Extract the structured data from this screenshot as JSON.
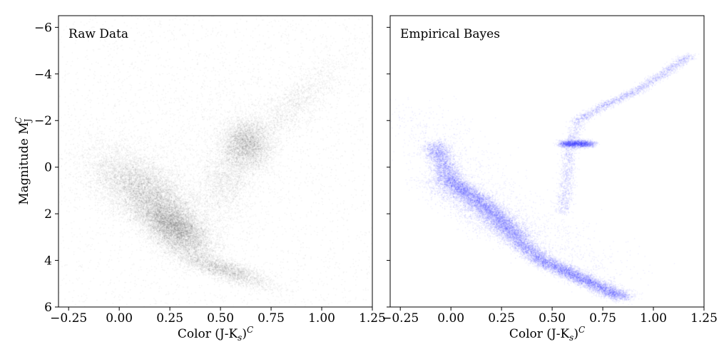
{
  "chart_data": [
    {
      "type": "scatter",
      "panel_label": "Raw Data",
      "xlabel": "Color (J-K",
      "xlabel_sub": "s",
      "xlabel_suffix": ")",
      "xlabel_sup": "C",
      "ylabel": "Magnitude M",
      "ylabel_sub": "J",
      "ylabel_sup": "C",
      "xlim": [
        -0.3,
        1.25
      ],
      "ylim": [
        6,
        -6.5
      ],
      "y_inverted": true,
      "x_ticks": [
        -0.25,
        0.0,
        0.25,
        0.5,
        0.75,
        1.0,
        1.25
      ],
      "x_tick_labels": [
        "−0.25",
        "0.00",
        "0.25",
        "0.50",
        "0.75",
        "1.00",
        "1.25"
      ],
      "y_ticks": [
        -6,
        -4,
        -2,
        0,
        2,
        4,
        6
      ],
      "y_tick_labels": [
        "−6",
        "−4",
        "−2",
        "0",
        "2",
        "4",
        "6"
      ],
      "point_color": "#000000",
      "components": [
        {
          "name": "main-sequence-upper",
          "x": 0.12,
          "y": 1.0,
          "sx": 0.13,
          "sy": 0.9,
          "rho": 0.55,
          "weight": 0.28
        },
        {
          "name": "main-sequence-core",
          "x": 0.28,
          "y": 2.6,
          "sx": 0.09,
          "sy": 0.65,
          "rho": 0.55,
          "weight": 0.3
        },
        {
          "name": "main-sequence-tail",
          "x": 0.52,
          "y": 4.4,
          "sx": 0.12,
          "sy": 0.4,
          "rho": 0.8,
          "weight": 0.1
        },
        {
          "name": "red-clump",
          "x": 0.63,
          "y": -1.0,
          "sx": 0.06,
          "sy": 0.55,
          "rho": 0.1,
          "weight": 0.14
        },
        {
          "name": "subgiant-branch",
          "x": 0.53,
          "y": 0.5,
          "sx": 0.07,
          "sy": 1.0,
          "rho": -0.3,
          "weight": 0.07
        },
        {
          "name": "giant-branch",
          "x": 0.85,
          "y": -2.6,
          "sx": 0.14,
          "sy": 1.1,
          "rho": -0.85,
          "weight": 0.06
        },
        {
          "name": "field-background",
          "x": 0.45,
          "y": -1.0,
          "sx": 0.35,
          "sy": 2.2,
          "rho": -0.3,
          "weight": 0.05
        }
      ]
    },
    {
      "type": "scatter",
      "panel_label": "Empirical Bayes",
      "xlabel": "Color (J-K",
      "xlabel_sub": "s",
      "xlabel_suffix": ")",
      "xlabel_sup": "C",
      "xlim": [
        -0.3,
        1.25
      ],
      "ylim": [
        6,
        -6.5
      ],
      "y_inverted": true,
      "x_ticks": [
        -0.25,
        0.0,
        0.25,
        0.5,
        0.75,
        1.0,
        1.25
      ],
      "x_tick_labels": [
        "−0.25",
        "0.00",
        "0.25",
        "0.50",
        "0.75",
        "1.00",
        "1.25"
      ],
      "y_ticks": [
        -6,
        -4,
        -2,
        0,
        2,
        4,
        6
      ],
      "point_color": "#0000ff",
      "ridges": [
        {
          "name": "main-sequence",
          "points": [
            [
              -0.08,
              -1.0
            ],
            [
              0.0,
              0.6
            ],
            [
              0.1,
              1.2
            ],
            [
              0.2,
              1.9
            ],
            [
              0.28,
              2.6
            ],
            [
              0.35,
              3.3
            ],
            [
              0.45,
              4.0
            ],
            [
              0.6,
              4.6
            ],
            [
              0.75,
              5.2
            ],
            [
              0.85,
              5.6
            ]
          ],
          "width_x": 0.035,
          "weight": 0.62
        },
        {
          "name": "main-sequence-spread",
          "points": [
            [
              -0.05,
              0.5
            ],
            [
              0.1,
              1.5
            ],
            [
              0.25,
              2.5
            ],
            [
              0.32,
              3.0
            ]
          ],
          "width_x": 0.07,
          "weight": 0.12
        },
        {
          "name": "red-clump",
          "points": [
            [
              0.55,
              -1.0
            ],
            [
              0.69,
              -1.0
            ]
          ],
          "width_x": 0.02,
          "width_y": 0.08,
          "weight": 0.08
        },
        {
          "name": "subgiant-branch",
          "points": [
            [
              0.55,
              2.0
            ],
            [
              0.57,
              1.0
            ],
            [
              0.58,
              0.0
            ],
            [
              0.59,
              -1.0
            ],
            [
              0.63,
              -2.0
            ]
          ],
          "width_x": 0.02,
          "weight": 0.05
        },
        {
          "name": "giant-branch",
          "points": [
            [
              0.63,
              -2.0
            ],
            [
              0.75,
              -2.6
            ],
            [
              0.9,
              -3.2
            ],
            [
              1.05,
              -4.0
            ],
            [
              1.18,
              -4.8
            ]
          ],
          "width_x": 0.02,
          "weight": 0.08
        },
        {
          "name": "halo",
          "points": [
            [
              -0.2,
              -2.5
            ],
            [
              0.1,
              0.5
            ],
            [
              0.4,
              2.5
            ],
            [
              0.8,
              4.8
            ]
          ],
          "width_x": 0.12,
          "weight": 0.05
        }
      ]
    }
  ]
}
